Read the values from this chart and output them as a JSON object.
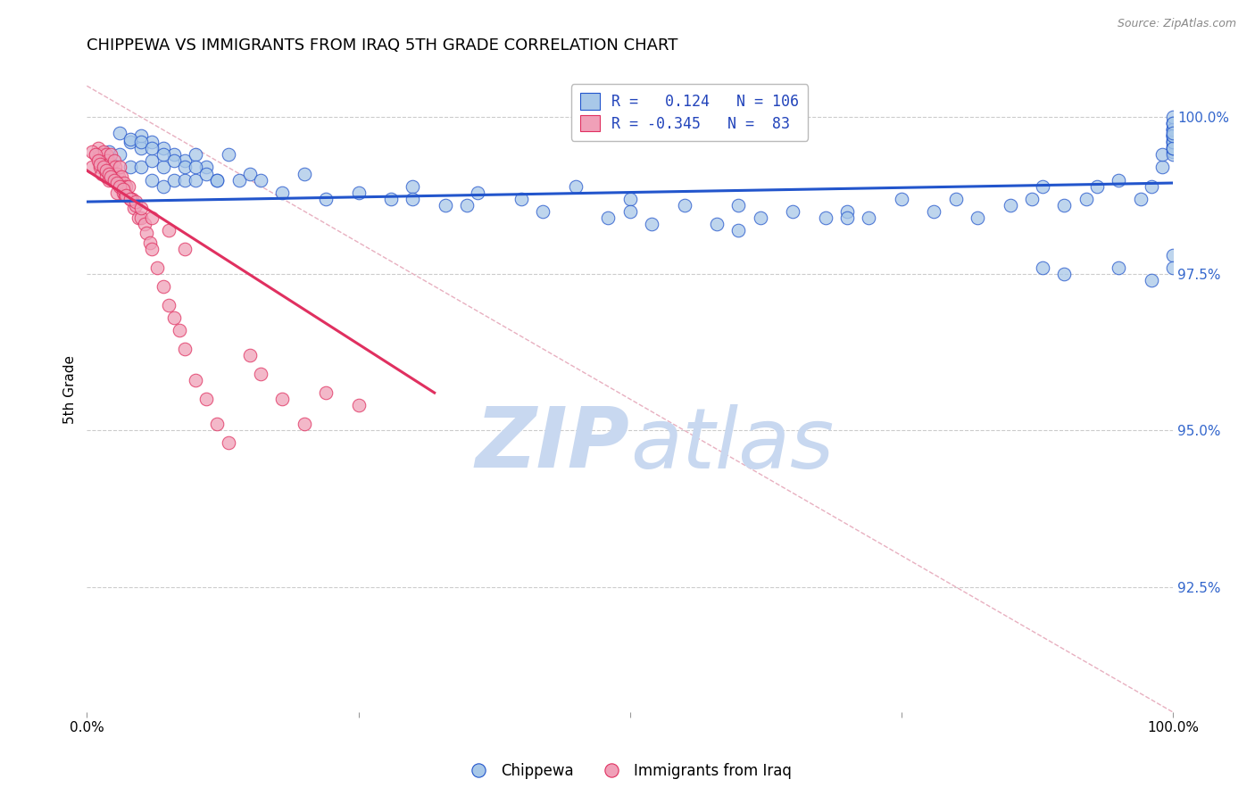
{
  "title": "CHIPPEWA VS IMMIGRANTS FROM IRAQ 5TH GRADE CORRELATION CHART",
  "source": "Source: ZipAtlas.com",
  "ylabel": "5th Grade",
  "ytick_labels": [
    "100.0%",
    "97.5%",
    "95.0%",
    "92.5%"
  ],
  "ytick_values": [
    1.0,
    0.975,
    0.95,
    0.925
  ],
  "xlim": [
    0.0,
    1.0
  ],
  "ylim": [
    0.905,
    1.008
  ],
  "blue_color": "#A8C8E8",
  "pink_color": "#F0A0B8",
  "trendline_blue": "#2255CC",
  "trendline_pink": "#E03060",
  "trendline_dashed_color": "#E8B0C0",
  "watermark_zip_color": "#C8D8F0",
  "watermark_atlas_color": "#C8D8F0",
  "blue_trend_x": [
    0.0,
    1.0
  ],
  "blue_trend_y": [
    0.9865,
    0.9895
  ],
  "pink_trend_x": [
    0.0,
    0.32
  ],
  "pink_trend_y": [
    0.9915,
    0.956
  ],
  "diag_trend_x": [
    0.0,
    1.0
  ],
  "diag_trend_y": [
    1.005,
    0.905
  ],
  "blue_scatter_x": [
    0.02,
    0.03,
    0.03,
    0.04,
    0.04,
    0.05,
    0.05,
    0.05,
    0.06,
    0.06,
    0.06,
    0.07,
    0.07,
    0.07,
    0.08,
    0.08,
    0.09,
    0.09,
    0.1,
    0.1,
    0.11,
    0.12,
    0.13,
    0.14,
    0.15,
    0.16,
    0.18,
    0.2,
    0.22,
    0.25,
    0.28,
    0.3,
    0.35,
    0.4,
    0.42,
    0.45,
    0.5,
    0.52,
    0.55,
    0.6,
    0.62,
    0.65,
    0.68,
    0.7,
    0.72,
    0.75,
    0.78,
    0.8,
    0.82,
    0.85,
    0.87,
    0.88,
    0.9,
    0.92,
    0.93,
    0.95,
    0.97,
    0.98,
    0.99,
    0.99,
    1.0,
    1.0,
    1.0,
    1.0,
    1.0,
    1.0,
    1.0,
    1.0,
    1.0,
    1.0,
    1.0,
    1.0,
    1.0,
    1.0,
    1.0,
    1.0,
    1.0,
    1.0,
    1.0,
    1.0,
    1.0,
    1.0,
    1.0,
    0.04,
    0.05,
    0.06,
    0.07,
    0.08,
    0.09,
    0.1,
    0.11,
    0.12,
    0.3,
    0.33,
    0.36,
    0.48,
    0.5,
    0.58,
    0.6,
    0.7,
    0.88,
    0.9,
    0.95,
    0.98,
    1.0,
    1.0
  ],
  "blue_scatter_y": [
    0.9945,
    0.994,
    0.9975,
    0.996,
    0.992,
    0.995,
    0.992,
    0.997,
    0.996,
    0.993,
    0.99,
    0.995,
    0.992,
    0.989,
    0.994,
    0.99,
    0.993,
    0.99,
    0.994,
    0.99,
    0.992,
    0.99,
    0.994,
    0.99,
    0.991,
    0.99,
    0.988,
    0.991,
    0.987,
    0.988,
    0.987,
    0.989,
    0.986,
    0.987,
    0.985,
    0.989,
    0.987,
    0.983,
    0.986,
    0.986,
    0.984,
    0.985,
    0.984,
    0.985,
    0.984,
    0.987,
    0.985,
    0.987,
    0.984,
    0.986,
    0.987,
    0.989,
    0.986,
    0.987,
    0.989,
    0.99,
    0.987,
    0.989,
    0.992,
    0.994,
    0.999,
    0.998,
    0.9975,
    0.997,
    0.9965,
    0.996,
    0.9955,
    0.995,
    0.9945,
    0.994,
    0.998,
    0.997,
    0.996,
    0.995,
    0.997,
    0.996,
    0.995,
    0.999,
    0.998,
    0.997,
    1.0,
    0.999,
    0.9975,
    0.9965,
    0.996,
    0.995,
    0.994,
    0.993,
    0.992,
    0.992,
    0.991,
    0.99,
    0.987,
    0.986,
    0.988,
    0.984,
    0.985,
    0.983,
    0.982,
    0.984,
    0.976,
    0.975,
    0.976,
    0.974,
    0.978,
    0.976
  ],
  "pink_scatter_x": [
    0.005,
    0.008,
    0.01,
    0.01,
    0.012,
    0.013,
    0.014,
    0.015,
    0.015,
    0.016,
    0.017,
    0.018,
    0.018,
    0.019,
    0.02,
    0.02,
    0.021,
    0.022,
    0.022,
    0.023,
    0.024,
    0.025,
    0.025,
    0.026,
    0.027,
    0.028,
    0.028,
    0.029,
    0.03,
    0.03,
    0.031,
    0.032,
    0.033,
    0.034,
    0.035,
    0.036,
    0.037,
    0.038,
    0.04,
    0.042,
    0.043,
    0.045,
    0.047,
    0.05,
    0.053,
    0.055,
    0.058,
    0.06,
    0.065,
    0.07,
    0.075,
    0.08,
    0.085,
    0.09,
    0.1,
    0.11,
    0.12,
    0.13,
    0.15,
    0.16,
    0.18,
    0.2,
    0.22,
    0.25,
    0.005,
    0.008,
    0.01,
    0.012,
    0.015,
    0.018,
    0.02,
    0.022,
    0.025,
    0.028,
    0.03,
    0.033,
    0.036,
    0.04,
    0.045,
    0.05,
    0.06,
    0.075,
    0.09
  ],
  "pink_scatter_y": [
    0.992,
    0.994,
    0.9935,
    0.995,
    0.992,
    0.994,
    0.991,
    0.9925,
    0.9945,
    0.992,
    0.9915,
    0.994,
    0.9905,
    0.993,
    0.9925,
    0.99,
    0.9915,
    0.992,
    0.994,
    0.9915,
    0.99,
    0.993,
    0.99,
    0.992,
    0.99,
    0.991,
    0.988,
    0.9905,
    0.9895,
    0.992,
    0.989,
    0.9905,
    0.988,
    0.9895,
    0.9875,
    0.989,
    0.9875,
    0.989,
    0.987,
    0.987,
    0.9855,
    0.986,
    0.984,
    0.984,
    0.983,
    0.9815,
    0.98,
    0.979,
    0.976,
    0.973,
    0.97,
    0.968,
    0.966,
    0.963,
    0.958,
    0.955,
    0.951,
    0.948,
    0.962,
    0.959,
    0.955,
    0.951,
    0.956,
    0.954,
    0.9945,
    0.994,
    0.993,
    0.9925,
    0.992,
    0.9915,
    0.991,
    0.9905,
    0.99,
    0.9895,
    0.989,
    0.9885,
    0.9875,
    0.987,
    0.9865,
    0.9855,
    0.984,
    0.982,
    0.979
  ]
}
